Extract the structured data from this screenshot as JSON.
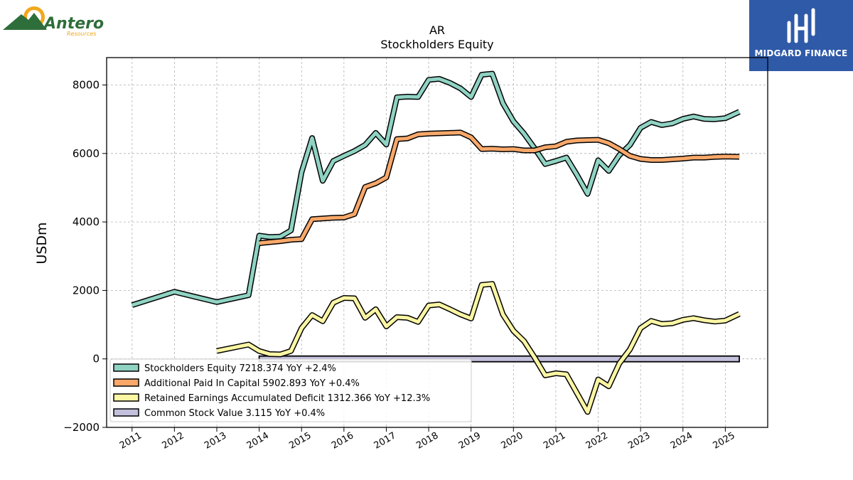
{
  "logos": {
    "left_company": "Antero",
    "left_sub": "Resources",
    "right_company": "MIDGARD FINANCE"
  },
  "chart_data": {
    "type": "line",
    "title": "AR",
    "subtitle": "Stockholders  Equity",
    "ylabel": "USDm",
    "xlabel": "",
    "ylim": [
      -2000,
      8800
    ],
    "xlim": [
      2010.4,
      2026.0
    ],
    "yticks": [
      -2000,
      0,
      2000,
      4000,
      6000,
      8000
    ],
    "xticks": [
      "2011",
      "2012",
      "2013",
      "2014",
      "2015",
      "2016",
      "2017",
      "2018",
      "2019",
      "2020",
      "2021",
      "2022",
      "2023",
      "2024",
      "2025"
    ],
    "grid": true,
    "legend_position": "lower-left",
    "series": [
      {
        "name": "Stockholders Equity",
        "legend": "Stockholders Equity  7218.374 YoY +2.4%",
        "color": "#8fd3c3",
        "points": [
          [
            2011.0,
            1570
          ],
          [
            2012.0,
            1960
          ],
          [
            2013.0,
            1660
          ],
          [
            2013.75,
            1860
          ],
          [
            2014.0,
            3600
          ],
          [
            2014.25,
            3560
          ],
          [
            2014.5,
            3570
          ],
          [
            2014.75,
            3750
          ],
          [
            2015.0,
            5450
          ],
          [
            2015.25,
            6450
          ],
          [
            2015.5,
            5200
          ],
          [
            2015.75,
            5780
          ],
          [
            2016.0,
            5930
          ],
          [
            2016.25,
            6070
          ],
          [
            2016.5,
            6250
          ],
          [
            2016.75,
            6600
          ],
          [
            2017.0,
            6260
          ],
          [
            2017.25,
            7640
          ],
          [
            2017.5,
            7660
          ],
          [
            2017.75,
            7650
          ],
          [
            2018.0,
            8150
          ],
          [
            2018.25,
            8180
          ],
          [
            2018.5,
            8060
          ],
          [
            2018.75,
            7900
          ],
          [
            2019.0,
            7650
          ],
          [
            2019.25,
            8300
          ],
          [
            2019.5,
            8330
          ],
          [
            2019.75,
            7470
          ],
          [
            2020.0,
            6940
          ],
          [
            2020.25,
            6580
          ],
          [
            2020.5,
            6150
          ],
          [
            2020.75,
            5690
          ],
          [
            2021.0,
            5780
          ],
          [
            2021.25,
            5880
          ],
          [
            2021.5,
            5370
          ],
          [
            2021.75,
            4820
          ],
          [
            2022.0,
            5800
          ],
          [
            2022.25,
            5490
          ],
          [
            2022.5,
            5950
          ],
          [
            2022.75,
            6250
          ],
          [
            2023.0,
            6750
          ],
          [
            2023.25,
            6920
          ],
          [
            2023.5,
            6830
          ],
          [
            2023.75,
            6880
          ],
          [
            2024.0,
            7010
          ],
          [
            2024.25,
            7080
          ],
          [
            2024.5,
            7010
          ],
          [
            2024.75,
            7000
          ],
          [
            2025.0,
            7030
          ],
          [
            2025.33,
            7218.374
          ]
        ]
      },
      {
        "name": "Additional Paid In Capital",
        "legend": "Additional Paid In Capital  5902.893 YoY +0.4%",
        "color": "#f9a86a",
        "points": [
          [
            2014.0,
            3380
          ],
          [
            2014.25,
            3410
          ],
          [
            2014.5,
            3440
          ],
          [
            2014.75,
            3480
          ],
          [
            2015.0,
            3500
          ],
          [
            2015.25,
            4080
          ],
          [
            2015.5,
            4100
          ],
          [
            2015.75,
            4120
          ],
          [
            2016.0,
            4130
          ],
          [
            2016.25,
            4230
          ],
          [
            2016.5,
            5020
          ],
          [
            2016.75,
            5130
          ],
          [
            2017.0,
            5300
          ],
          [
            2017.25,
            6420
          ],
          [
            2017.5,
            6440
          ],
          [
            2017.75,
            6560
          ],
          [
            2018.0,
            6580
          ],
          [
            2018.25,
            6590
          ],
          [
            2018.5,
            6600
          ],
          [
            2018.75,
            6610
          ],
          [
            2019.0,
            6470
          ],
          [
            2019.25,
            6130
          ],
          [
            2019.5,
            6140
          ],
          [
            2019.75,
            6120
          ],
          [
            2020.0,
            6130
          ],
          [
            2020.25,
            6090
          ],
          [
            2020.5,
            6090
          ],
          [
            2020.75,
            6180
          ],
          [
            2021.0,
            6210
          ],
          [
            2021.25,
            6340
          ],
          [
            2021.5,
            6380
          ],
          [
            2021.75,
            6390
          ],
          [
            2022.0,
            6400
          ],
          [
            2022.25,
            6300
          ],
          [
            2022.5,
            6130
          ],
          [
            2022.75,
            5930
          ],
          [
            2023.0,
            5840
          ],
          [
            2023.25,
            5810
          ],
          [
            2023.5,
            5810
          ],
          [
            2023.75,
            5830
          ],
          [
            2024.0,
            5850
          ],
          [
            2024.25,
            5880
          ],
          [
            2024.5,
            5880
          ],
          [
            2024.75,
            5900
          ],
          [
            2025.0,
            5910
          ],
          [
            2025.33,
            5902.893
          ]
        ]
      },
      {
        "name": "Retained Earnings Accumulated Deficit",
        "legend": "Retained Earnings Accumulated Deficit  1312.366 YoY +12.3%",
        "color": "#fbf6a4",
        "points": [
          [
            2013.0,
            230
          ],
          [
            2013.75,
            420
          ],
          [
            2014.0,
            230
          ],
          [
            2014.25,
            140
          ],
          [
            2014.5,
            130
          ],
          [
            2014.75,
            230
          ],
          [
            2015.0,
            900
          ],
          [
            2015.25,
            1280
          ],
          [
            2015.5,
            1100
          ],
          [
            2015.75,
            1640
          ],
          [
            2016.0,
            1780
          ],
          [
            2016.25,
            1770
          ],
          [
            2016.5,
            1200
          ],
          [
            2016.75,
            1450
          ],
          [
            2017.0,
            950
          ],
          [
            2017.25,
            1220
          ],
          [
            2017.5,
            1200
          ],
          [
            2017.75,
            1080
          ],
          [
            2018.0,
            1560
          ],
          [
            2018.25,
            1590
          ],
          [
            2018.5,
            1450
          ],
          [
            2018.75,
            1300
          ],
          [
            2019.0,
            1180
          ],
          [
            2019.25,
            2160
          ],
          [
            2019.5,
            2190
          ],
          [
            2019.75,
            1300
          ],
          [
            2020.0,
            820
          ],
          [
            2020.25,
            520
          ],
          [
            2020.5,
            40
          ],
          [
            2020.75,
            -480
          ],
          [
            2021.0,
            -420
          ],
          [
            2021.25,
            -450
          ],
          [
            2021.5,
            -1000
          ],
          [
            2021.75,
            -1550
          ],
          [
            2022.0,
            -600
          ],
          [
            2022.25,
            -800
          ],
          [
            2022.5,
            -130
          ],
          [
            2022.75,
            280
          ],
          [
            2023.0,
            900
          ],
          [
            2023.25,
            1110
          ],
          [
            2023.5,
            1020
          ],
          [
            2023.75,
            1040
          ],
          [
            2024.0,
            1140
          ],
          [
            2024.25,
            1190
          ],
          [
            2024.5,
            1130
          ],
          [
            2024.75,
            1090
          ],
          [
            2025.0,
            1120
          ],
          [
            2025.33,
            1312.366
          ]
        ]
      }
    ],
    "bars": [
      {
        "name": "Common Stock Value",
        "legend": "Common Stock Value  3.115 YoY +0.4%",
        "color": "#c3c0dc",
        "x_start": 2014.0,
        "x_end": 2025.33,
        "value": 3.115
      }
    ]
  }
}
